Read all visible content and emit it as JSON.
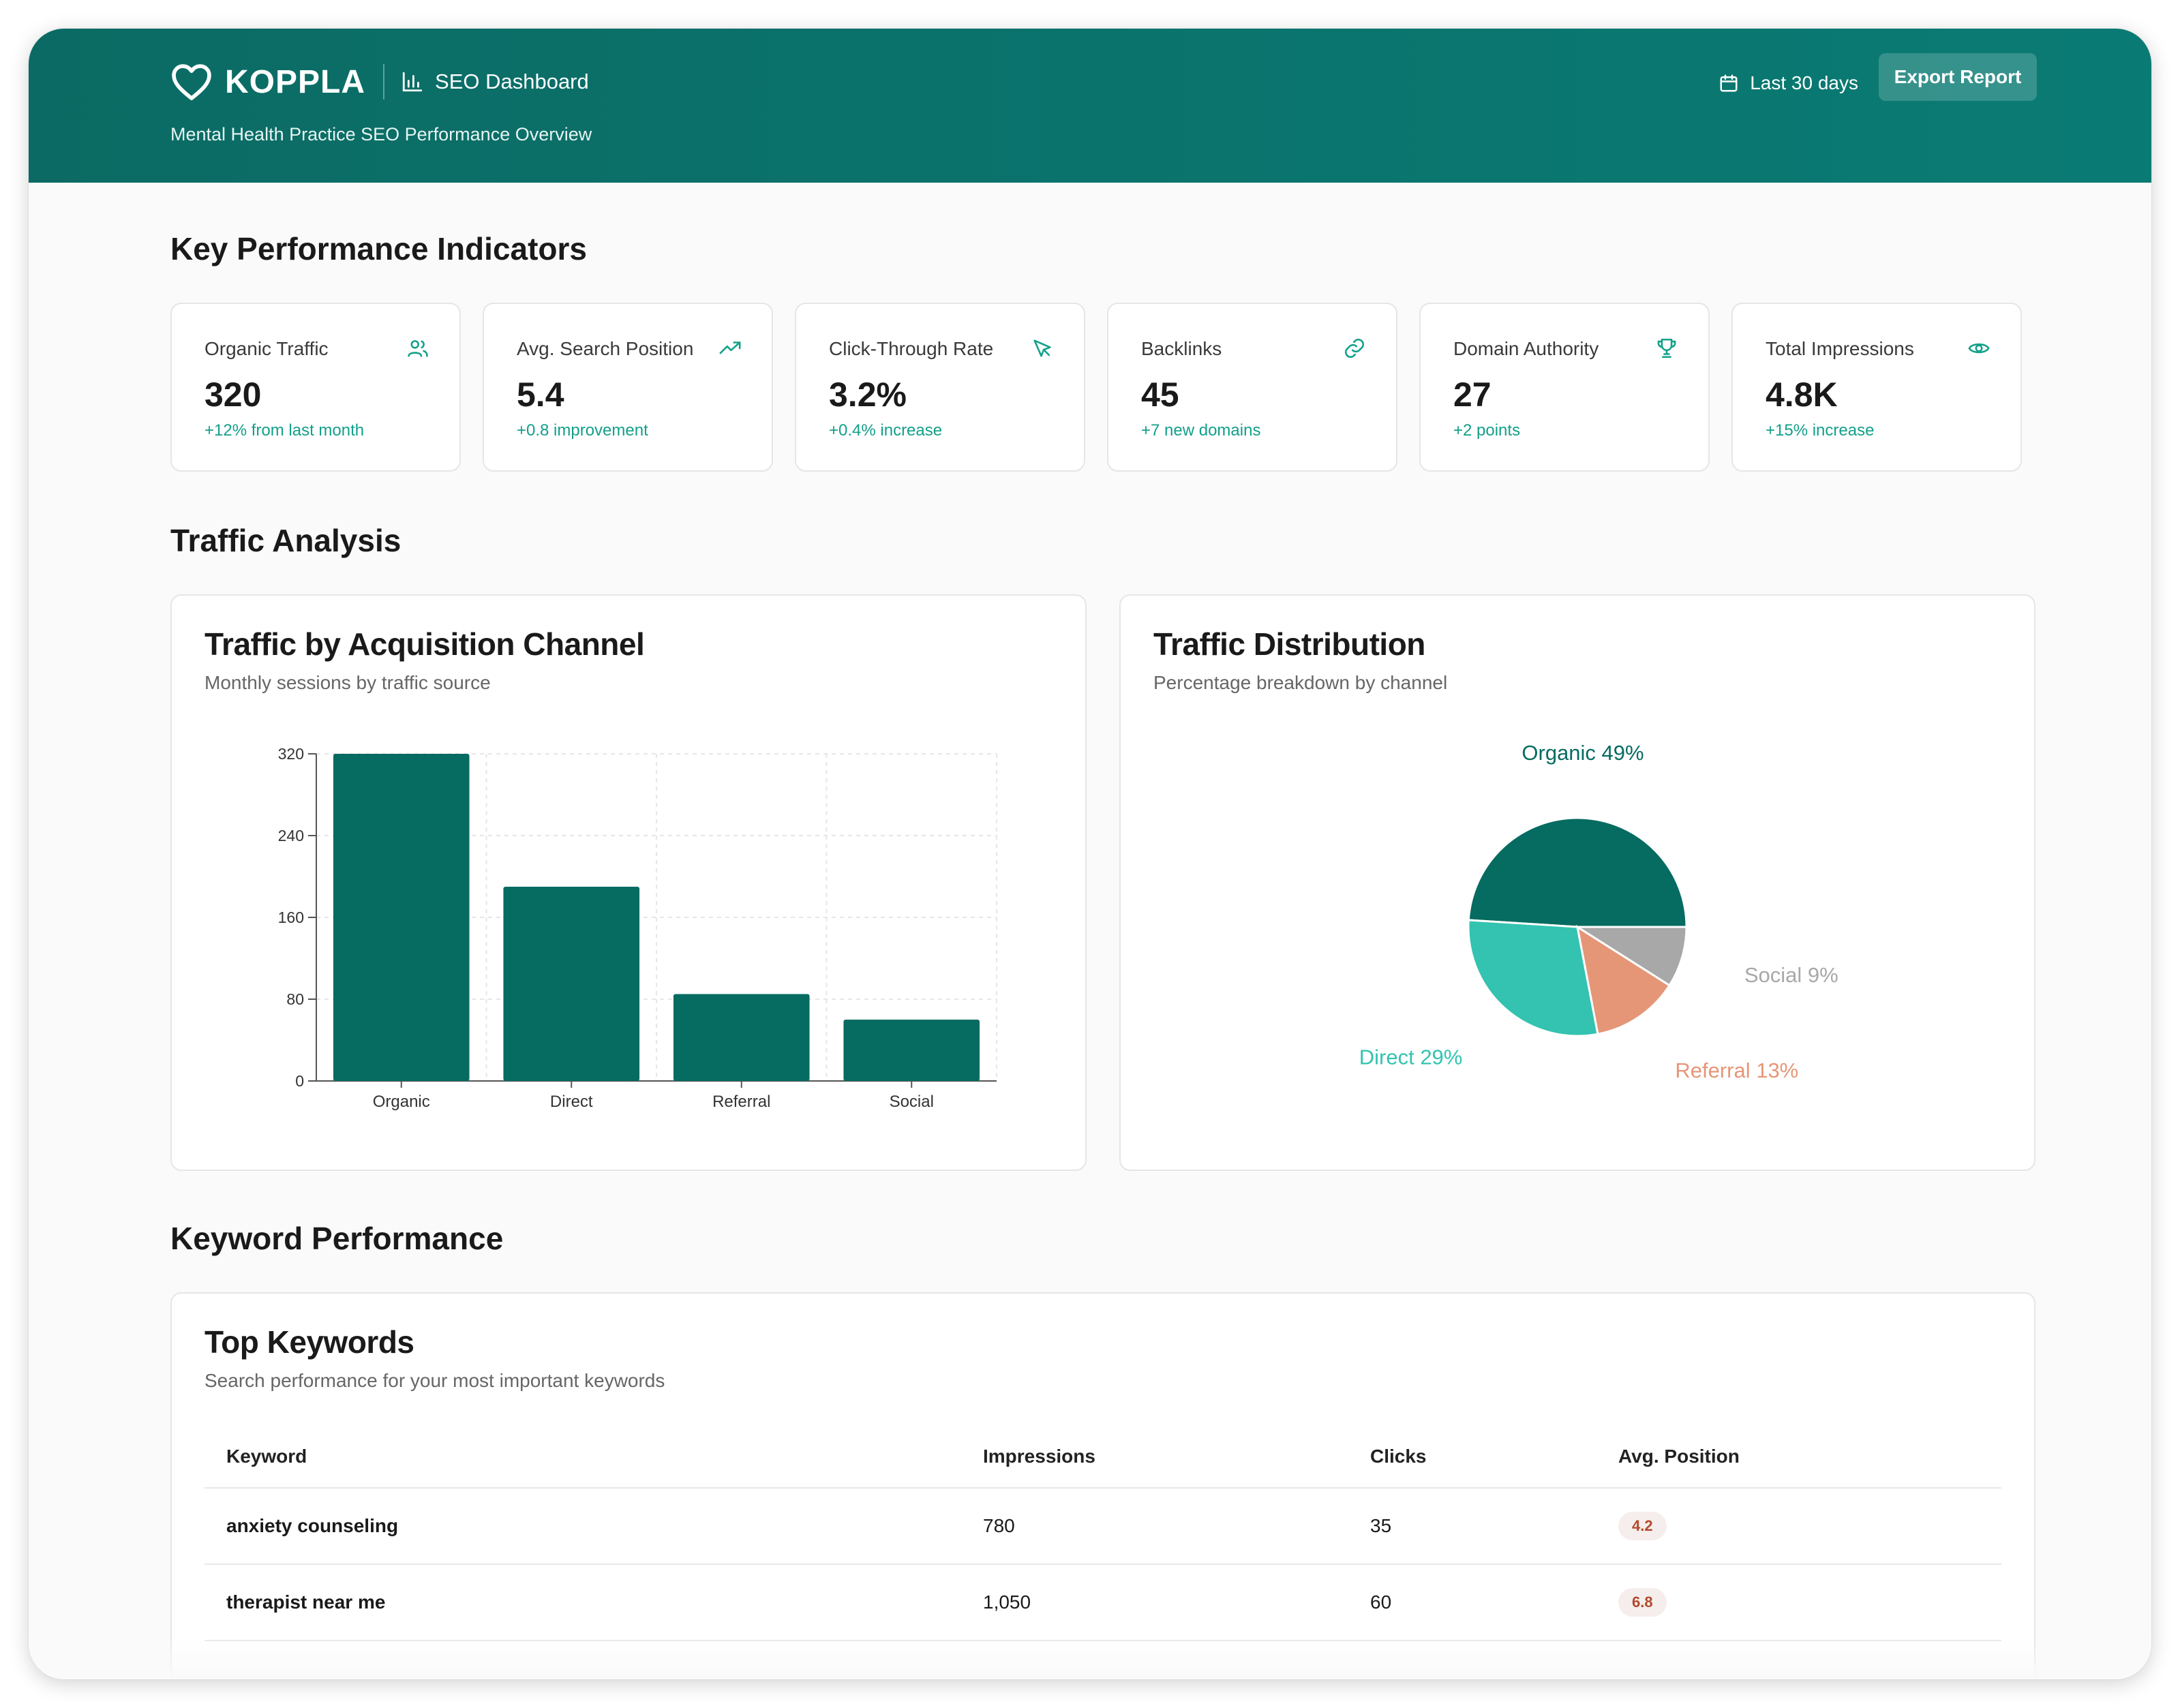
{
  "header": {
    "brand": "KOPPLA",
    "dashboard_label": "SEO Dashboard",
    "subtitle": "Mental Health Practice SEO Performance Overview",
    "date_range": "Last 30 days",
    "export_label": "Export Report",
    "accent_color": "#0b6b64"
  },
  "sections": {
    "kpi": "Key Performance Indicators",
    "traffic": "Traffic Analysis",
    "keywords": "Keyword Performance"
  },
  "kpis": [
    {
      "label": "Organic Traffic",
      "value": "320",
      "change": "+12% from last month",
      "icon": "users-icon"
    },
    {
      "label": "Avg. Search Position",
      "value": "5.4",
      "change": "+0.8 improvement",
      "icon": "trending-up-icon"
    },
    {
      "label": "Click-Through Rate",
      "value": "3.2%",
      "change": "+0.4% increase",
      "icon": "cursor-icon"
    },
    {
      "label": "Backlinks",
      "value": "45",
      "change": "+7 new domains",
      "icon": "link-icon"
    },
    {
      "label": "Domain Authority",
      "value": "27",
      "change": "+2 points",
      "icon": "trophy-icon"
    },
    {
      "label": "Total Impressions",
      "value": "4.8K",
      "change": "+15% increase",
      "icon": "eye-icon"
    }
  ],
  "bar_card": {
    "title": "Traffic by Acquisition Channel",
    "subtitle": "Monthly sessions by traffic source"
  },
  "pie_card": {
    "title": "Traffic Distribution",
    "subtitle": "Percentage breakdown by channel"
  },
  "chart_data": [
    {
      "type": "bar",
      "categories": [
        "Organic",
        "Direct",
        "Referral",
        "Social"
      ],
      "values": [
        320,
        190,
        85,
        60
      ],
      "yticks": [
        0,
        80,
        160,
        240,
        320
      ],
      "ylim": [
        0,
        320
      ],
      "grid": true,
      "color": "#066b61"
    },
    {
      "type": "pie",
      "labels": [
        "Organic",
        "Direct",
        "Referral",
        "Social"
      ],
      "values": [
        49,
        29,
        13,
        9
      ],
      "display_labels": [
        "Organic 49%",
        "Direct 29%",
        "Referral 13%",
        "Social 9%"
      ],
      "colors": [
        "#066b61",
        "#33c3b0",
        "#e59677",
        "#a8a8a8"
      ]
    }
  ],
  "keywords": {
    "title": "Top Keywords",
    "subtitle": "Search performance for your most important keywords",
    "columns": [
      "Keyword",
      "Impressions",
      "Clicks",
      "Avg. Position"
    ],
    "rows": [
      {
        "keyword": "anxiety counseling",
        "impressions": "780",
        "clicks": "35",
        "position": "4.2"
      },
      {
        "keyword": "therapist near me",
        "impressions": "1,050",
        "clicks": "60",
        "position": "6.8"
      }
    ]
  }
}
